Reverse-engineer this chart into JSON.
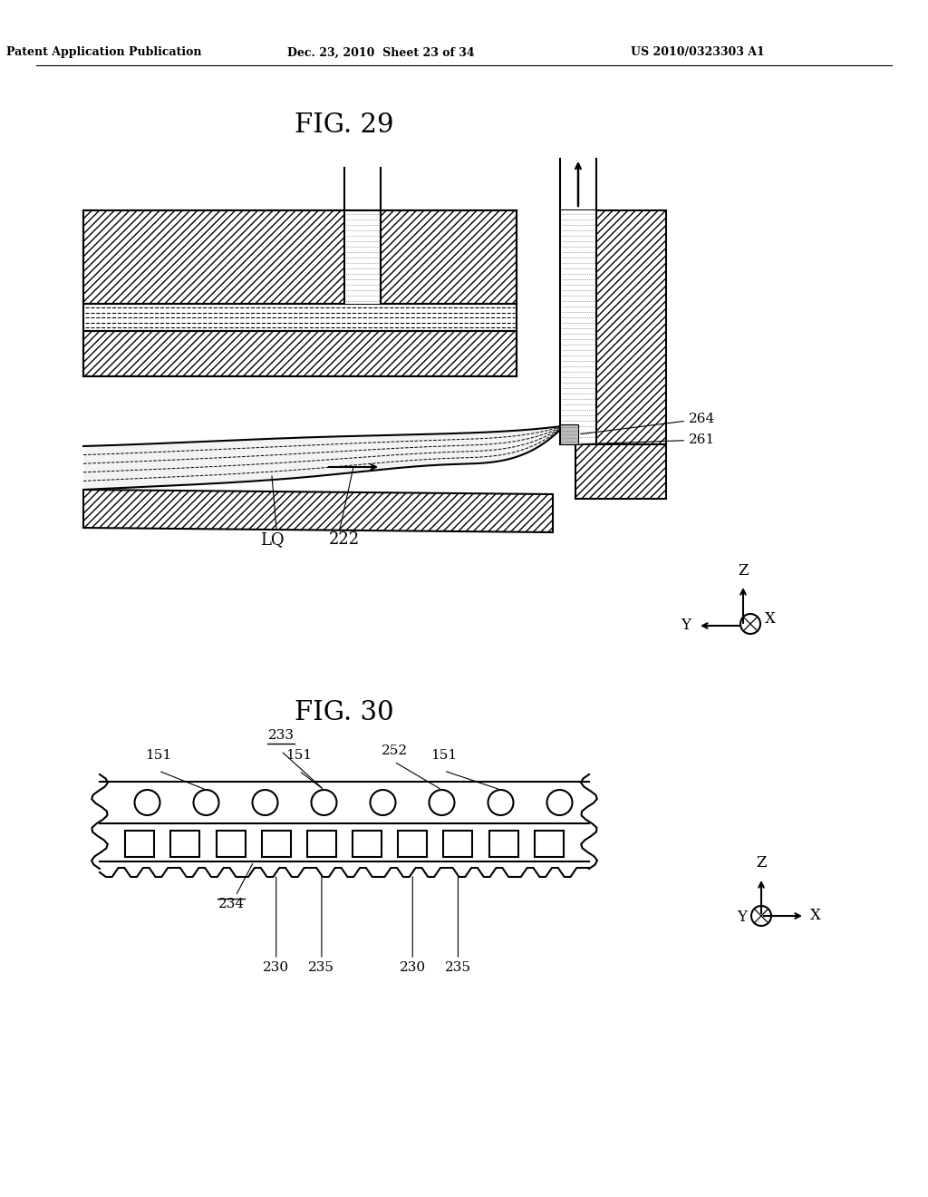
{
  "header_left": "Patent Application Publication",
  "header_center": "Dec. 23, 2010  Sheet 23 of 34",
  "header_right": "US 2010/0323303 A1",
  "fig29_title": "FIG. 29",
  "fig30_title": "FIG. 30",
  "bg_color": "#ffffff",
  "lc": "#000000"
}
